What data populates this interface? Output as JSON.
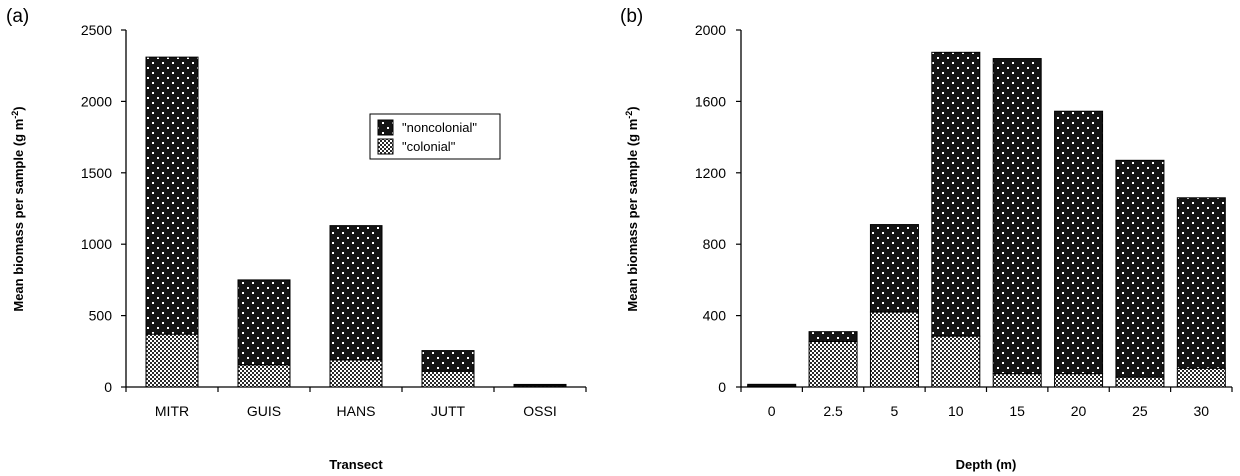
{
  "chart_data": [
    {
      "type": "bar",
      "panel_label": "(a)",
      "stacked": true,
      "xlabel": "Transect",
      "ylabel": "Mean biomass per sample (g m⁻²)",
      "ylim": [
        0,
        2500
      ],
      "yticks": [
        0,
        500,
        1000,
        1500,
        2000,
        2500
      ],
      "categories": [
        "MITR",
        "GUIS",
        "HANS",
        "JUTT",
        "OSSI"
      ],
      "series": [
        {
          "name": "\"colonial\"",
          "values": [
            370,
            155,
            190,
            110,
            8
          ]
        },
        {
          "name": "\"noncolonial\"",
          "values": [
            1940,
            595,
            940,
            145,
            10
          ]
        }
      ],
      "legend": {
        "placement": "upper-right",
        "entries": [
          "\"noncolonial\"",
          "\"colonial\""
        ]
      }
    },
    {
      "type": "bar",
      "panel_label": "(b)",
      "stacked": true,
      "xlabel": "Depth (m)",
      "ylabel": "Mean biomass per sample (g m⁻²)",
      "ylim": [
        0,
        2000
      ],
      "yticks": [
        0,
        400,
        800,
        1200,
        1600,
        2000
      ],
      "categories": [
        "0",
        "2.5",
        "5",
        "10",
        "15",
        "20",
        "25",
        "30"
      ],
      "series": [
        {
          "name": "\"colonial\"",
          "values": [
            5,
            255,
            420,
            285,
            75,
            75,
            55,
            105
          ]
        },
        {
          "name": "\"noncolonial\"",
          "values": [
            10,
            55,
            490,
            1590,
            1765,
            1470,
            1215,
            955
          ]
        }
      ]
    }
  ],
  "colors": {
    "noncolonial_fill": "#141414",
    "colonial_fill": "#ffffff",
    "axis": "#000000"
  }
}
